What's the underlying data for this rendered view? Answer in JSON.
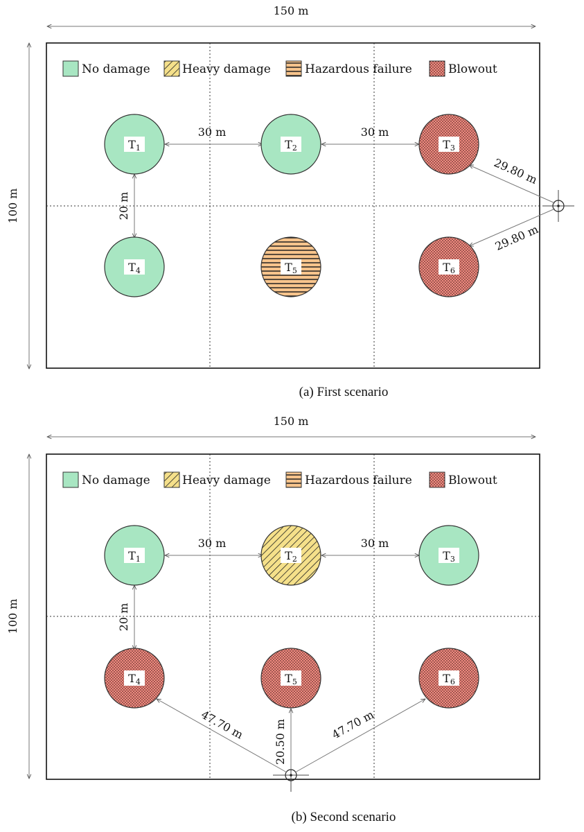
{
  "legend": {
    "no_damage": "No damage",
    "heavy_damage": "Heavy damage",
    "hazardous_failure": "Hazardous failure",
    "blowout": "Blowout"
  },
  "colors": {
    "no_damage": "#a8e6c2",
    "heavy_damage": "#f5e08a",
    "hazardous_failure": "#f7c48c",
    "blowout": "#f08a80"
  },
  "scenarios": [
    {
      "caption": "(a) First scenario",
      "width_label": "150 m",
      "height_label": "100 m",
      "spacing_h_12": "30 m",
      "spacing_h_23": "30 m",
      "spacing_v_14": "20 m",
      "tanks": [
        {
          "id": "T1",
          "base": "T",
          "sub": "1",
          "state": "no_damage"
        },
        {
          "id": "T2",
          "base": "T",
          "sub": "2",
          "state": "no_damage"
        },
        {
          "id": "T3",
          "base": "T",
          "sub": "3",
          "state": "blowout"
        },
        {
          "id": "T4",
          "base": "T",
          "sub": "4",
          "state": "no_damage"
        },
        {
          "id": "T5",
          "base": "T",
          "sub": "5",
          "state": "hazardous_failure"
        },
        {
          "id": "T6",
          "base": "T",
          "sub": "6",
          "state": "blowout"
        }
      ],
      "source_distances": [
        "29.80 m",
        "29.80 m"
      ]
    },
    {
      "caption": "(b) Second scenario",
      "width_label": "150 m",
      "height_label": "100 m",
      "spacing_h_12": "30 m",
      "spacing_h_23": "30 m",
      "spacing_v_14": "20 m",
      "tanks": [
        {
          "id": "T1",
          "base": "T",
          "sub": "1",
          "state": "no_damage"
        },
        {
          "id": "T2",
          "base": "T",
          "sub": "2",
          "state": "heavy_damage"
        },
        {
          "id": "T3",
          "base": "T",
          "sub": "3",
          "state": "no_damage"
        },
        {
          "id": "T4",
          "base": "T",
          "sub": "4",
          "state": "blowout"
        },
        {
          "id": "T5",
          "base": "T",
          "sub": "5",
          "state": "blowout"
        },
        {
          "id": "T6",
          "base": "T",
          "sub": "6",
          "state": "blowout"
        }
      ],
      "source_distances": [
        "47.70 m",
        "20.50 m",
        "47.70 m"
      ]
    }
  ]
}
